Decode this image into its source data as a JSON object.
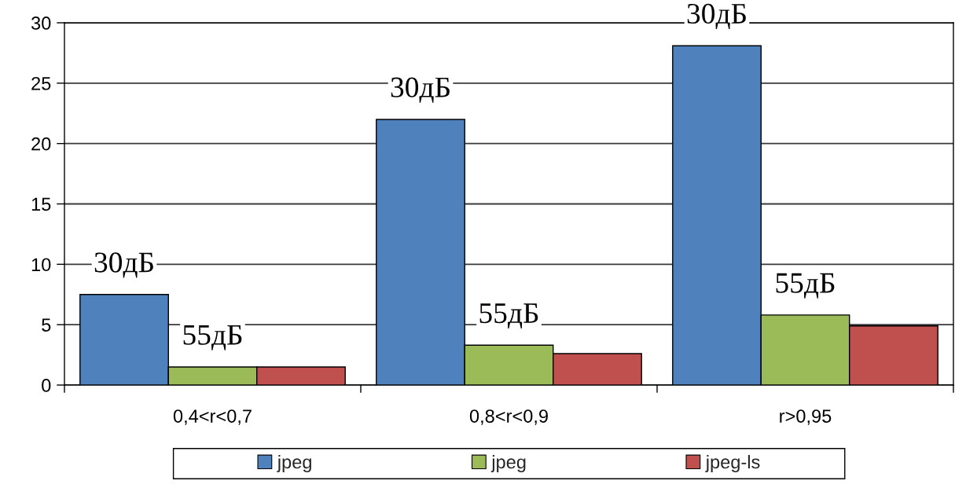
{
  "chart_data": {
    "type": "bar",
    "categories": [
      "0,4<r<0,7",
      "0,8<r<0,9",
      "r>0,95"
    ],
    "series": [
      {
        "name": "jpeg",
        "color": "#4f81bd",
        "values": [
          7.5,
          22.0,
          28.1
        ]
      },
      {
        "name": "jpeg",
        "color": "#9bbb59",
        "values": [
          1.5,
          3.3,
          5.8
        ]
      },
      {
        "name": "jpeg-ls",
        "color": "#c0504d",
        "values": [
          1.5,
          2.6,
          4.9
        ]
      }
    ],
    "ylim": [
      0,
      30
    ],
    "yticks": [
      0,
      5,
      10,
      15,
      20,
      25,
      30
    ],
    "grid": "y",
    "legend": "bottom",
    "annotations": [
      "30дБ",
      {
        "text": "55дБ",
        "x": "0,4<r<0,7",
        "y": 1.5
      },
      "30дБ",
      {
        "text": "55дБ",
        "x": "0,8<r<0,9",
        "y": 3.3
      },
      "30дБ",
      {
        "text": "55дБ",
        "x": "r>0,95",
        "y": 5.8
      }
    ]
  }
}
